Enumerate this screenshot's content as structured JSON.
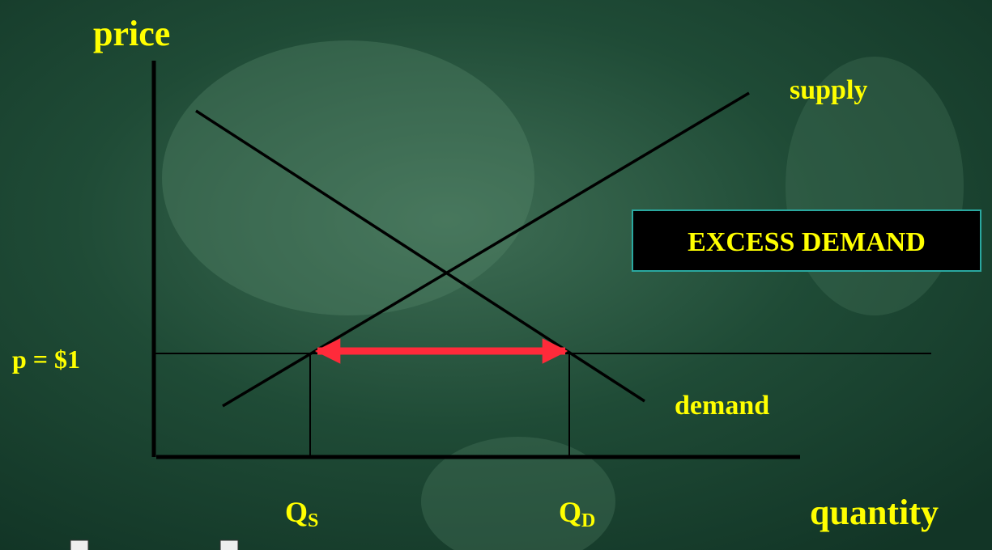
{
  "axes": {
    "y_label": "price",
    "x_label": "quantity"
  },
  "curves": {
    "supply": "supply",
    "demand": "demand"
  },
  "price_label": "p = $1",
  "callout": "EXCESS DEMAND",
  "quantities": {
    "supplied": {
      "symbol": "Q",
      "subscript": "S"
    },
    "demanded": {
      "symbol": "Q",
      "subscript": "D"
    }
  }
}
